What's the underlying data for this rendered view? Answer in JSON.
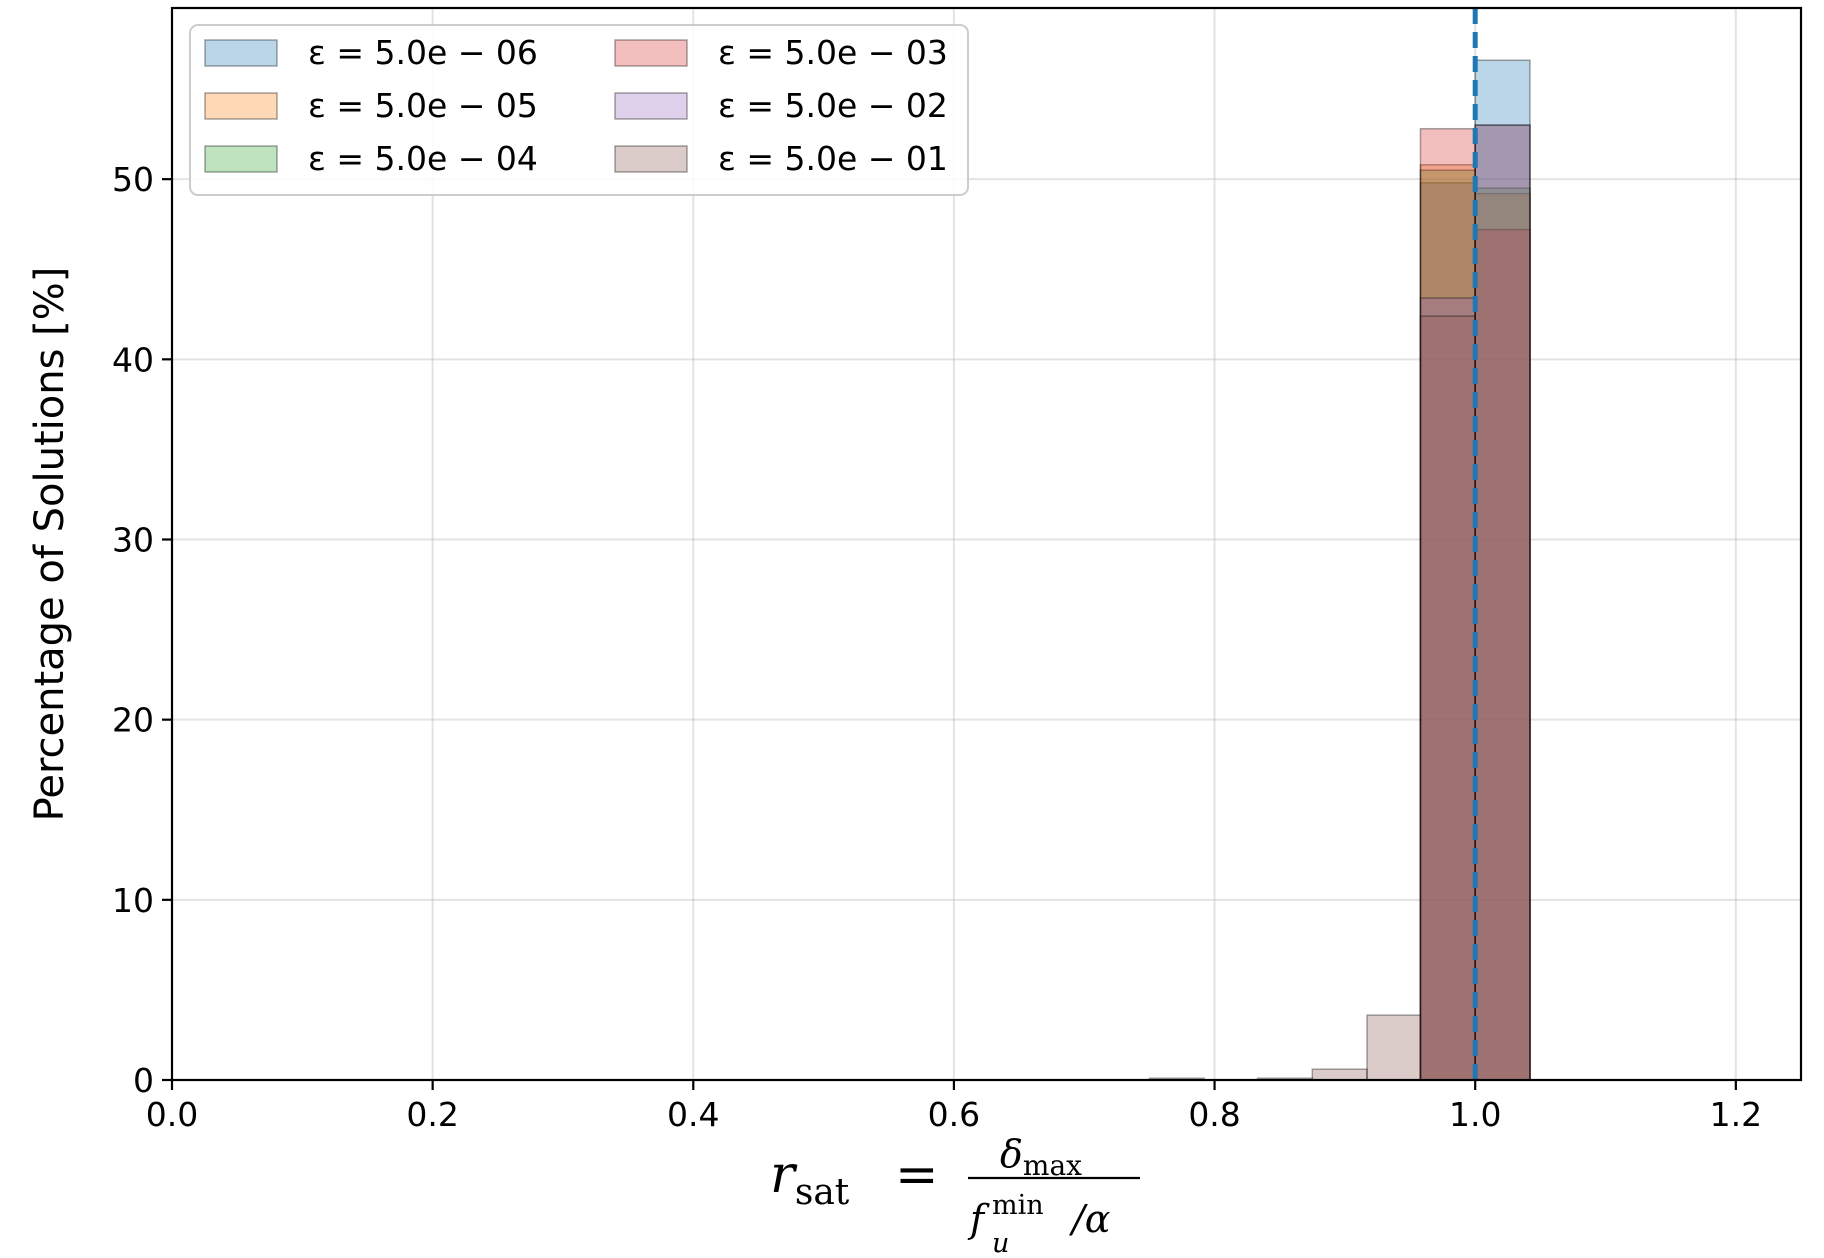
{
  "chart_data": {
    "type": "bar",
    "subtype": "overlaid-histogram",
    "title": "",
    "xlabel": "r_sat = δ_max / (f_u^min / α)",
    "xlabel_parts": {
      "lhs": "r",
      "lhs_sub": "sat",
      "equals": "=",
      "num": "δ",
      "num_sub": "max",
      "den_f": "f",
      "den_sup": "min",
      "den_sub": "u",
      "den_rest": "/α"
    },
    "ylabel": "Percentage of Solutions [%]",
    "xlim": [
      0.0,
      1.25
    ],
    "ylim": [
      0,
      59.5
    ],
    "xticks": [
      "0.0",
      "0.2",
      "0.4",
      "0.6",
      "0.8",
      "1.0",
      "1.2"
    ],
    "xtick_values": [
      0.0,
      0.2,
      0.4,
      0.6,
      0.8,
      1.0,
      1.2
    ],
    "yticks": [
      "0",
      "10",
      "20",
      "30",
      "40",
      "50"
    ],
    "ytick_values": [
      0,
      10,
      20,
      30,
      40,
      50
    ],
    "grid": true,
    "legend_position": "top-left",
    "legend_columns": 2,
    "reference_line": {
      "x": 1.0,
      "style": "dashed",
      "color": "#1f77b4"
    },
    "bar_opacity": 0.3,
    "series": [
      {
        "name": "ε = 5.0e − 06",
        "color": "#1f77b4",
        "bins": [
          [
            0.958,
            1.0,
            49.8
          ],
          [
            1.0,
            1.042,
            56.6
          ]
        ]
      },
      {
        "name": "ε = 5.0e − 05",
        "color": "#ff7f0e",
        "bins": [
          [
            0.958,
            1.0,
            50.8
          ],
          [
            1.0,
            1.042,
            49.2
          ]
        ]
      },
      {
        "name": "ε = 5.0e − 04",
        "color": "#2ca02c",
        "bins": [
          [
            0.958,
            1.0,
            50.5
          ],
          [
            1.0,
            1.042,
            49.5
          ]
        ]
      },
      {
        "name": "ε = 5.0e − 03",
        "color": "#d62728",
        "bins": [
          [
            0.958,
            1.0,
            52.8
          ],
          [
            1.0,
            1.042,
            47.2
          ]
        ]
      },
      {
        "name": "ε = 5.0e − 02",
        "color": "#9467bd",
        "bins": [
          [
            0.958,
            1.0,
            43.4
          ],
          [
            1.0,
            1.042,
            53.0
          ]
        ]
      },
      {
        "name": "ε = 5.0e − 01",
        "color": "#8c564b",
        "bins": [
          [
            0.75,
            0.792,
            0.1
          ],
          [
            0.833,
            0.875,
            0.1
          ],
          [
            0.875,
            0.917,
            0.6
          ],
          [
            0.917,
            0.958,
            3.6
          ],
          [
            0.958,
            1.0,
            42.4
          ],
          [
            1.0,
            1.042,
            53.0
          ]
        ]
      }
    ]
  }
}
